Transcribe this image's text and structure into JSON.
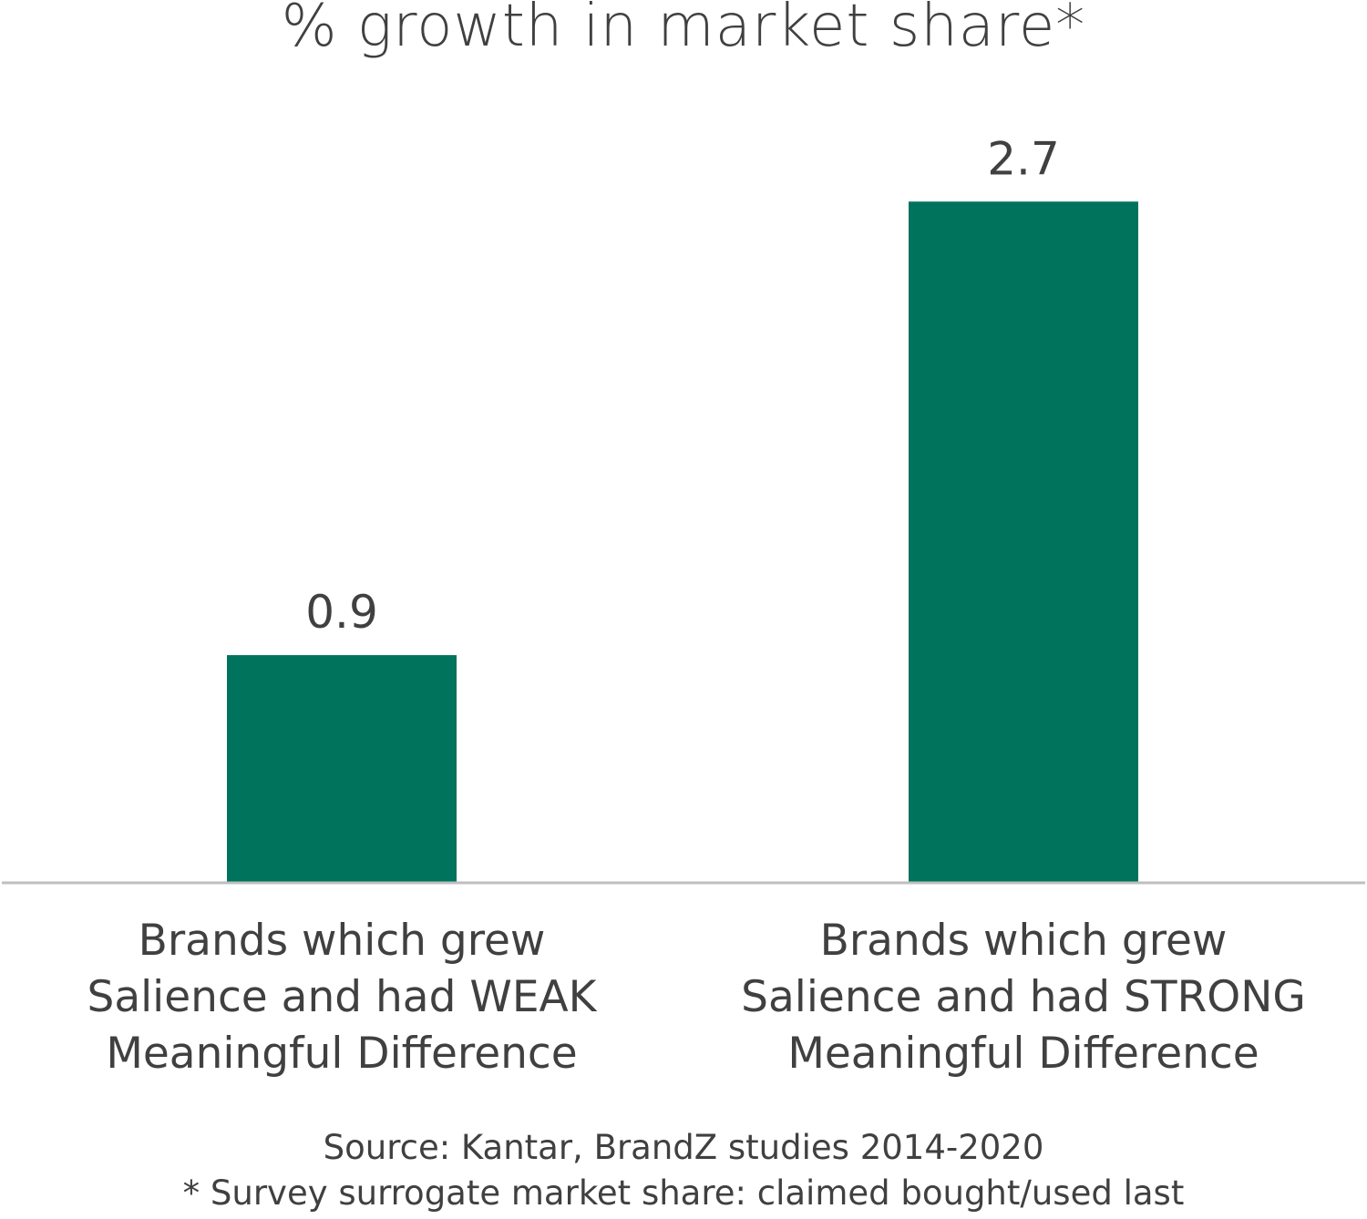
{
  "chart_data": {
    "type": "bar",
    "title": "% growth in market share*",
    "categories": [
      [
        "Brands which grew",
        "Salience and had WEAK",
        "Meaningful Difference"
      ],
      [
        "Brands which grew",
        "Salience and had STRONG",
        "Meaningful Difference"
      ]
    ],
    "values": [
      0.9,
      2.7
    ],
    "data_labels": [
      "0.9",
      "2.7"
    ],
    "ylim": [
      0,
      3.5
    ],
    "grid": false,
    "y_axis_shown": false,
    "bar_color": "#00735C",
    "axis_color": "#BFBFBF",
    "text_color": "#404040"
  },
  "footer": {
    "source": "Source: Kantar, BrandZ studies 2014-2020",
    "footnote": "* Survey surrogate market share: claimed bought/used last"
  }
}
